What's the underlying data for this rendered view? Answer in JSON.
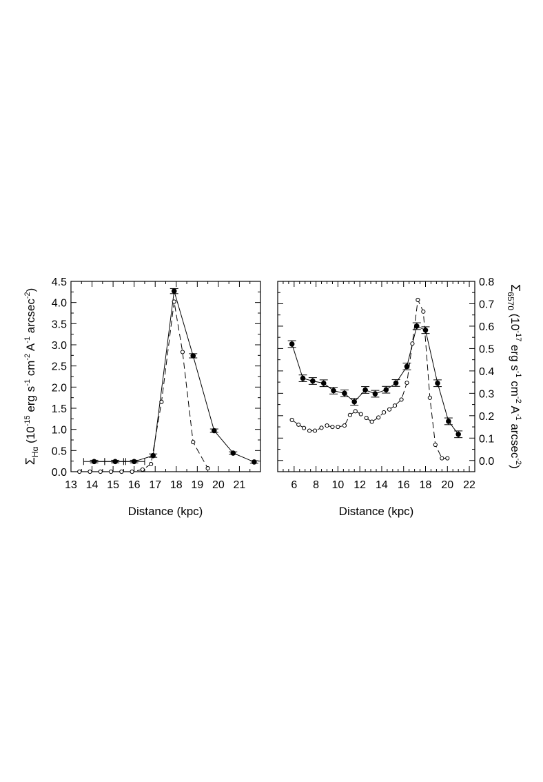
{
  "chart_data": [
    {
      "type": "line",
      "xlabel": "Distance  (kpc)",
      "ylabel": {
        "symbol": "Σ",
        "sub": "Hα",
        "text": " (10",
        "exp1": "-15",
        "rest1": " erg s",
        "exp2": "-1",
        "rest2": " cm",
        "exp3": "-2",
        "rest3": " A",
        "exp4": "-1",
        "rest4": " arcsec",
        "exp5": "-2",
        "rest5": ")"
      },
      "xlim": [
        13,
        22
      ],
      "ylim": [
        0,
        4.5
      ],
      "x_ticks": [
        13,
        14,
        15,
        16,
        17,
        18,
        19,
        20,
        21
      ],
      "x_tick_labels": [
        "13",
        "14",
        "15",
        "16",
        "17",
        "18",
        "19",
        "20",
        "21"
      ],
      "y_ticks": [
        0,
        0.5,
        1,
        1.5,
        2,
        2.5,
        3,
        3.5,
        4,
        4.5
      ],
      "y_tick_labels": [
        "0.0",
        "0.5",
        "1.0",
        "1.5",
        "2.0",
        "2.5",
        "3.0",
        "3.5",
        "4.0",
        "4.5"
      ],
      "series": [
        {
          "style": "solid-filled",
          "x": [
            14.1,
            15.1,
            16.0,
            16.9,
            17.9,
            18.8,
            19.8,
            20.7,
            21.7
          ],
          "y": [
            0.24,
            0.24,
            0.24,
            0.38,
            4.27,
            2.74,
            0.97,
            0.44,
            0.23
          ],
          "err": [
            0.03,
            0.03,
            0.03,
            0.04,
            0.06,
            0.05,
            0.04,
            0.03,
            0.03
          ],
          "xerr": [
            0.5,
            0.5,
            0.5,
            0,
            0,
            0,
            0,
            0,
            0
          ]
        },
        {
          "style": "dashed-open",
          "x": [
            13.4,
            13.9,
            14.4,
            14.9,
            15.4,
            15.9,
            16.4,
            16.8,
            17.3,
            17.9,
            18.3,
            18.8,
            19.5
          ],
          "y": [
            0.0,
            0.0,
            0.0,
            0.0,
            0.0,
            0.0,
            0.05,
            0.18,
            1.65,
            4.02,
            2.83,
            0.7,
            0.08
          ]
        }
      ]
    },
    {
      "type": "line",
      "xlabel": "Distance (kpc)",
      "ylabel": {
        "symbol": "Σ",
        "sub": "6570",
        "text": " (10",
        "exp1": "-17",
        "rest1": " erg s",
        "exp2": "-1",
        "rest2": " cm",
        "exp3": "-2",
        "rest3": " A",
        "exp4": "-1",
        "rest4": " arcsec",
        "exp5": "-2",
        "rest5": ")"
      },
      "xlim": [
        4.5,
        22.5
      ],
      "ylim": [
        -0.05,
        0.8
      ],
      "x_ticks": [
        6,
        8,
        10,
        12,
        14,
        16,
        18,
        20,
        22
      ],
      "x_tick_labels": [
        "6",
        "8",
        "10",
        "12",
        "14",
        "16",
        "18",
        "20",
        "22"
      ],
      "y_ticks": [
        0.0,
        0.1,
        0.2,
        0.3,
        0.4,
        0.5,
        0.6,
        0.7,
        0.8
      ],
      "y_tick_labels": [
        "0.0",
        "0.1",
        "0.2",
        "0.3",
        "0.4",
        "0.5",
        "0.6",
        "0.7",
        "0.8"
      ],
      "series": [
        {
          "style": "solid-filled",
          "x": [
            5.8,
            6.8,
            7.7,
            8.7,
            9.6,
            10.6,
            11.5,
            12.5,
            13.4,
            14.4,
            15.3,
            16.3,
            17.2,
            18.0,
            19.1,
            20.1,
            21.0
          ],
          "y": [
            0.52,
            0.367,
            0.355,
            0.345,
            0.312,
            0.3,
            0.262,
            0.315,
            0.298,
            0.316,
            0.346,
            0.42,
            0.6,
            0.582,
            0.345,
            0.175,
            0.117
          ],
          "err": [
            0.015,
            0.015,
            0.015,
            0.015,
            0.015,
            0.015,
            0.015,
            0.015,
            0.015,
            0.015,
            0.015,
            0.015,
            0.015,
            0.015,
            0.015,
            0.015,
            0.015
          ]
        },
        {
          "style": "dashed-open",
          "x": [
            5.8,
            6.4,
            6.9,
            7.4,
            7.9,
            8.5,
            9.0,
            9.5,
            10.0,
            10.6,
            11.1,
            11.6,
            12.1,
            12.6,
            13.1,
            13.7,
            14.2,
            14.7,
            15.2,
            15.8,
            16.3,
            16.8,
            17.3,
            17.8,
            18.4,
            18.9,
            19.5,
            20.0
          ],
          "y": [
            0.181,
            0.16,
            0.145,
            0.133,
            0.133,
            0.146,
            0.156,
            0.15,
            0.15,
            0.156,
            0.203,
            0.22,
            0.207,
            0.19,
            0.173,
            0.192,
            0.215,
            0.228,
            0.245,
            0.272,
            0.347,
            0.522,
            0.717,
            0.665,
            0.28,
            0.07,
            0.01,
            0.01
          ]
        }
      ]
    }
  ]
}
